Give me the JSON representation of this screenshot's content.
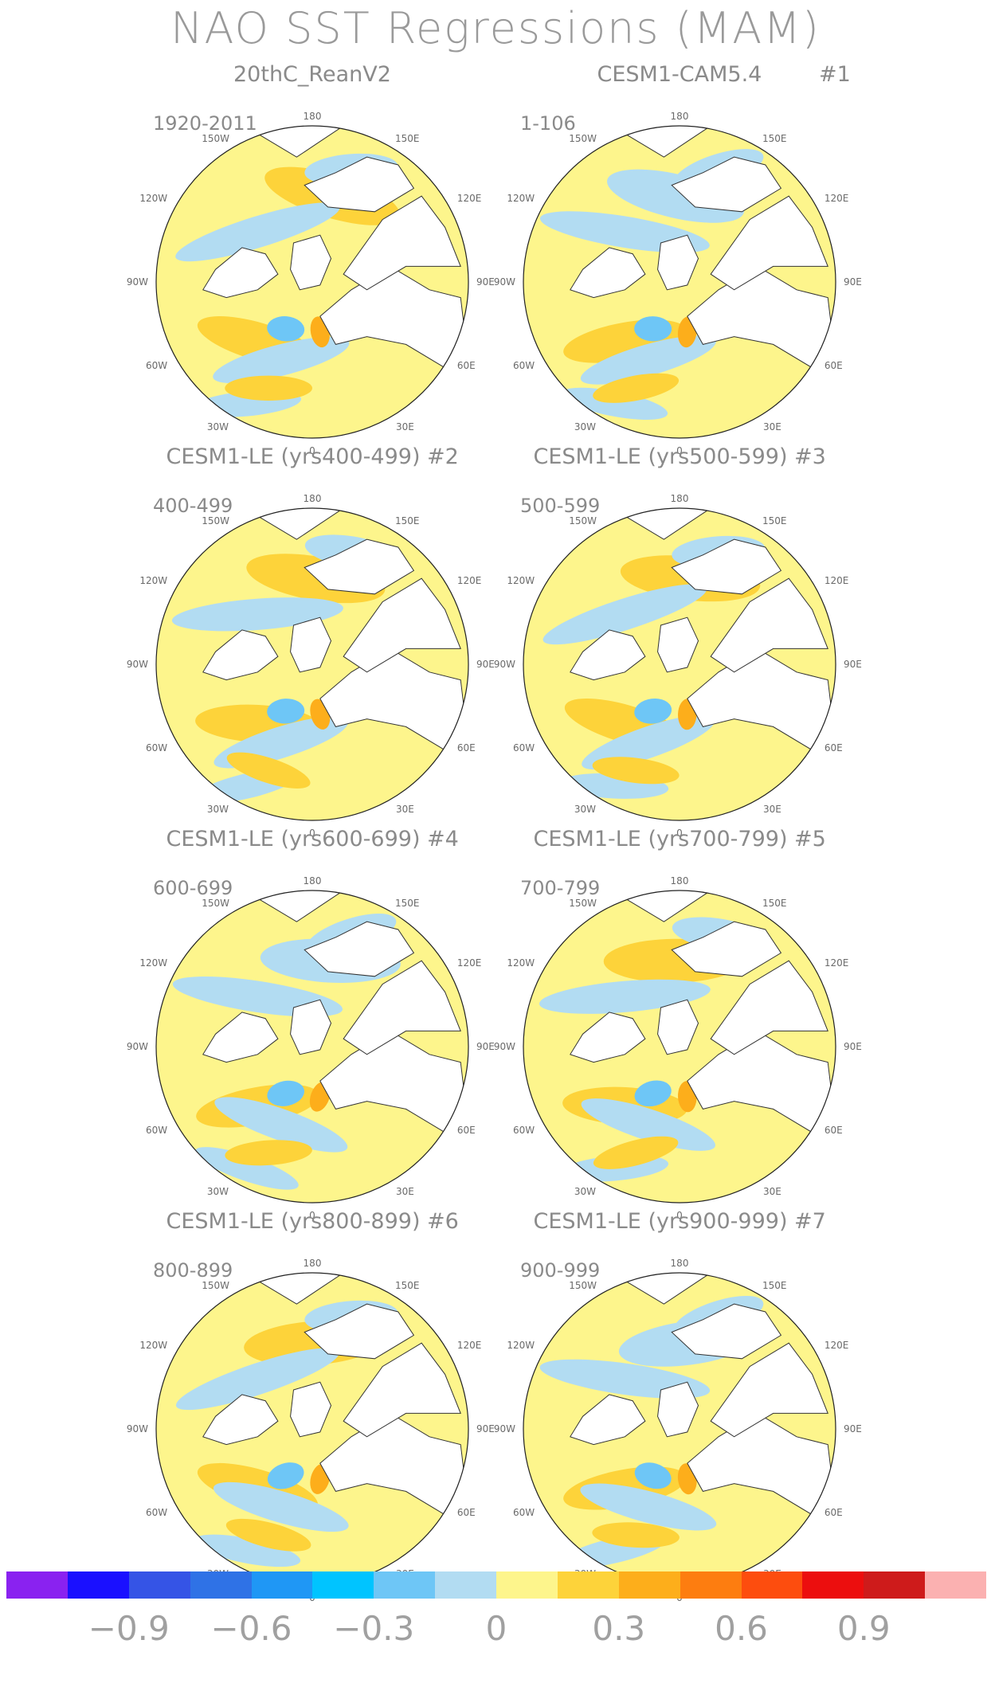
{
  "title": "NAO SST Regressions (MAM)",
  "panels": [
    {
      "title": "20thC_ReanV2",
      "tag": "",
      "period": "1920-2011"
    },
    {
      "title": "CESM1-CAM5.4",
      "tag": "#1",
      "period": "1-106"
    },
    {
      "title": "CESM1-LE (yrs400-499) #2",
      "tag": "",
      "period": "400-499"
    },
    {
      "title": "CESM1-LE (yrs500-599) #3",
      "tag": "",
      "period": "500-599"
    },
    {
      "title": "CESM1-LE (yrs600-699) #4",
      "tag": "",
      "period": "600-699"
    },
    {
      "title": "CESM1-LE (yrs700-799) #5",
      "tag": "",
      "period": "700-799"
    },
    {
      "title": "CESM1-LE (yrs800-899) #6",
      "tag": "",
      "period": "800-899"
    },
    {
      "title": "CESM1-LE (yrs900-999) #7",
      "tag": "",
      "period": "900-999"
    }
  ],
  "map_labels": {
    "top": "180",
    "bottom": "0",
    "upper_left": "150W",
    "upper_right": "150E",
    "left_upper": "120W",
    "right_upper": "120E",
    "left_mid": "90W",
    "right_mid": "90E",
    "left_lower": "60W",
    "right_lower": "60E",
    "lower_left": "30W",
    "lower_right": "30E"
  },
  "colorbar": {
    "colors": [
      "#8a22f0",
      "#1a10ff",
      "#3554e6",
      "#2f72e6",
      "#1f97f5",
      "#00c4ff",
      "#6ec6f6",
      "#b2dcf2",
      "#fdf58c",
      "#fdd33a",
      "#fdae1b",
      "#fd7d10",
      "#fd4d0e",
      "#ec0e0e",
      "#ce1b1b",
      "#fbb1b1"
    ],
    "labels": [
      "−0.9",
      "−0.6",
      "−0.3",
      "0",
      "0.3",
      "0.6",
      "0.9"
    ]
  }
}
